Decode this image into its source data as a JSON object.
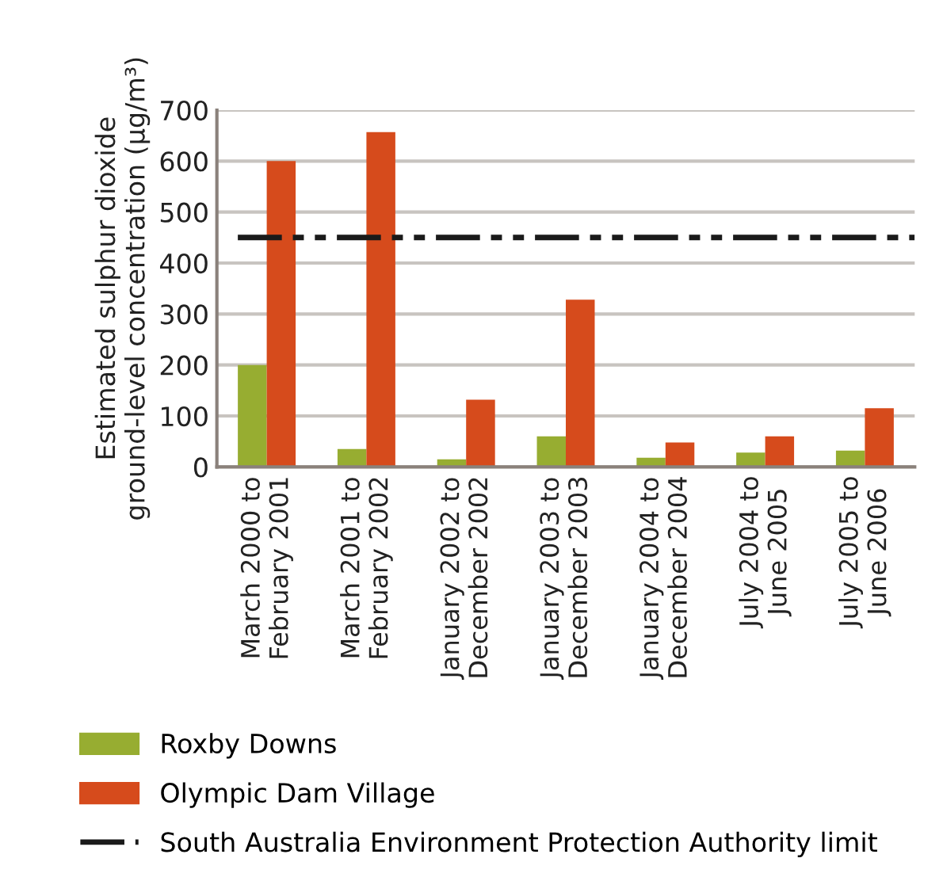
{
  "chart_data": {
    "type": "bar",
    "ylabel": "Estimated sulphur dioxide\nground-level concentration (µg/m³)",
    "categories": [
      "March 2000 to\nFebruary 2001",
      "March 2001 to\nFebruary 2002",
      "January 2002 to\nDecember 2002",
      "January 2003 to\nDecember 2003",
      "January 2004 to\nDecember 2004",
      "July 2004 to\nJune 2005",
      "July 2005 to\nJune 2006"
    ],
    "series": [
      {
        "name": "Roxby Downs",
        "color": "#97ad31",
        "values": [
          200,
          35,
          15,
          60,
          18,
          28,
          32
        ]
      },
      {
        "name": "Olympic Dam Village",
        "color": "#d64b1c",
        "values": [
          600,
          657,
          132,
          328,
          48,
          60,
          115
        ]
      }
    ],
    "ref_lines": [
      {
        "axis": "y",
        "value": 450,
        "label": "South Australia Environment Protection Authority limit",
        "color": "#1a1a1a",
        "line_style": "dashdotdot"
      }
    ],
    "ylim": [
      0,
      700
    ],
    "yticks": [
      0,
      100,
      200,
      300,
      400,
      500,
      600,
      700
    ],
    "grid": "y",
    "legend": "bottom"
  }
}
